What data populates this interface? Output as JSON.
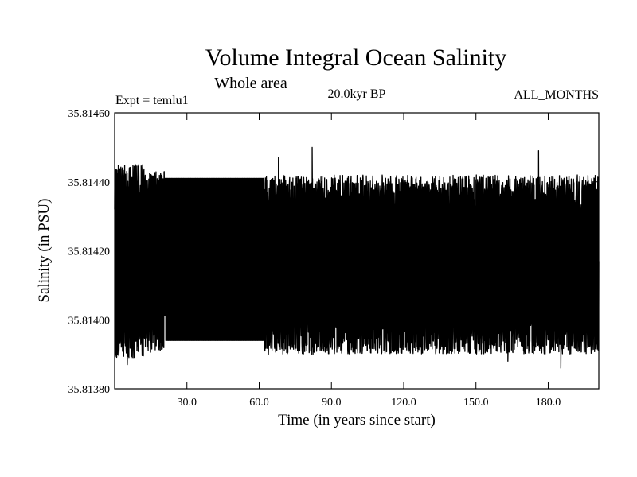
{
  "chart_data": {
    "type": "line",
    "title": "Volume Integral Ocean Salinity",
    "subtitle": "Whole area",
    "annotations": {
      "left": "Expt = temlu1",
      "center": "20.0kyr BP",
      "right": "ALL_MONTHS"
    },
    "xlabel": "Time (in years since start)",
    "ylabel": "Salinity (in PSU)",
    "xlim": [
      0,
      201
    ],
    "ylim": [
      35.8138,
      35.8146
    ],
    "xticks": [
      30,
      60,
      90,
      120,
      150,
      180
    ],
    "xtick_labels": [
      "30.0",
      "60.0",
      "90.0",
      "120.0",
      "150.0",
      "180.0"
    ],
    "yticks": [
      35.8138,
      35.814,
      35.8142,
      35.8144,
      35.8146
    ],
    "ytick_labels": [
      "35.81380",
      "35.81400",
      "35.81420",
      "35.81440",
      "35.81460"
    ],
    "grid": false,
    "series": [
      {
        "name": "Salinity",
        "color": "#000000",
        "description": "Monthly values oscillating rapidly between about 35.81390 and 35.81442 PSU",
        "segments": [
          {
            "x_start": 0,
            "x_end": 13,
            "min": 35.81389,
            "max": 35.81445,
            "center": 35.81416
          },
          {
            "x_start": 13,
            "x_end": 21,
            "min": 35.8139,
            "max": 35.81443,
            "center": 35.81417
          },
          {
            "x_start": 21,
            "x_end": 62,
            "min": 35.81394,
            "max": 35.81441,
            "center": 35.81418
          },
          {
            "x_start": 62,
            "x_end": 201,
            "min": 35.8139,
            "max": 35.81442,
            "center": 35.81417
          }
        ],
        "peaks": [
          {
            "x": 10,
            "y": 35.81445
          },
          {
            "x": 68,
            "y": 35.81447
          },
          {
            "x": 82,
            "y": 35.8145
          },
          {
            "x": 176,
            "y": 35.81449
          },
          {
            "x": 190,
            "y": 35.81437
          }
        ],
        "troughs": [
          {
            "x": 5,
            "y": 35.81387
          },
          {
            "x": 163,
            "y": 35.81388
          },
          {
            "x": 185,
            "y": 35.81386
          }
        ]
      }
    ]
  }
}
